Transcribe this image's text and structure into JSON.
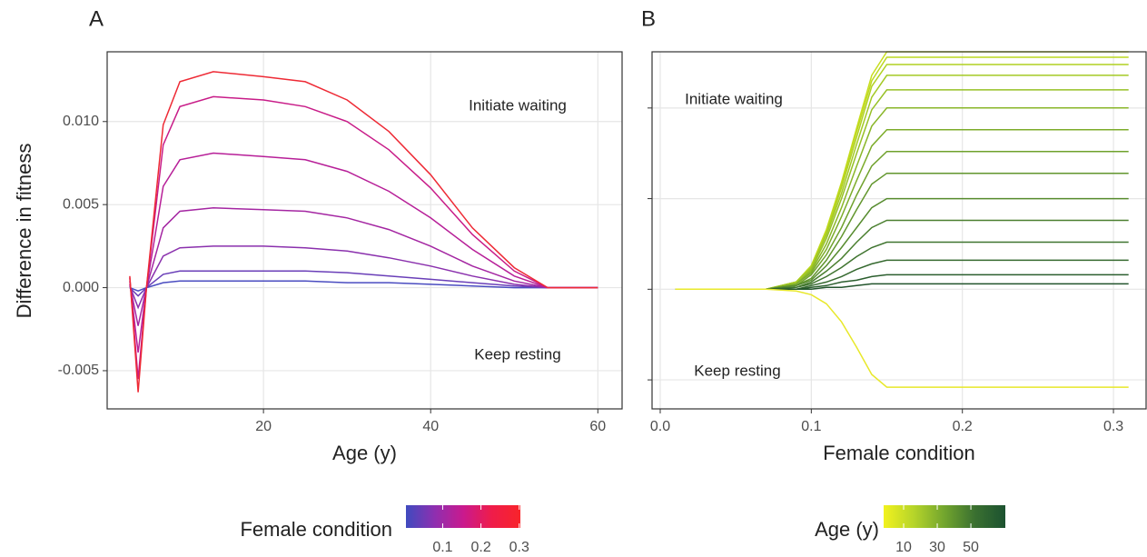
{
  "chart_data": [
    {
      "type": "line",
      "panel_label": "A",
      "x_label": "Age (y)",
      "y_label": "Difference in fitness",
      "annotations": [
        "Initiate waiting",
        "Keep resting"
      ],
      "xlim": [
        1.3,
        62.9
      ],
      "ylim": [
        -0.0073,
        0.0142
      ],
      "xticks": [
        20,
        40,
        60
      ],
      "yticks": [
        -0.005,
        {
          "value": 0,
          "label": "0.000"
        },
        {
          "value": 0.005,
          "label": "0.005"
        },
        {
          "value": 0.01,
          "label": "0.010"
        }
      ],
      "ytick_labels": true,
      "grid": true,
      "x": [
        4,
        5,
        6,
        8,
        10,
        14,
        20,
        25,
        30,
        35,
        40,
        45,
        50,
        54,
        60
      ],
      "series": [
        {
          "color": "#4a4cc0",
          "values": [
            0,
            -0.0002,
            0,
            0.0003,
            0.0004,
            0.0004,
            0.0004,
            0.0004,
            0.0003,
            0.0003,
            0.0002,
            0.0001,
            0,
            0,
            0
          ]
        },
        {
          "color": "#6a3fb8",
          "values": [
            0,
            -0.0005,
            0,
            0.0008,
            0.001,
            0.001,
            0.001,
            0.001,
            0.0009,
            0.0007,
            0.0005,
            0.0003,
            0.0001,
            0,
            0
          ]
        },
        {
          "color": "#8a30ad",
          "values": [
            0.0001,
            -0.0012,
            0,
            0.0019,
            0.0024,
            0.0025,
            0.0025,
            0.0024,
            0.0022,
            0.0018,
            0.0013,
            0.0007,
            0.0002,
            0,
            0
          ]
        },
        {
          "color": "#a426a2",
          "values": [
            0.0002,
            -0.0023,
            0,
            0.0036,
            0.0046,
            0.0048,
            0.0047,
            0.0046,
            0.0042,
            0.0035,
            0.0025,
            0.0013,
            0.0004,
            0,
            0
          ]
        },
        {
          "color": "#b71f98",
          "values": [
            0.0004,
            -0.0039,
            0,
            0.0061,
            0.0077,
            0.0081,
            0.0079,
            0.0077,
            0.007,
            0.0058,
            0.0042,
            0.0023,
            0.0007,
            0,
            0
          ]
        },
        {
          "color": "#c81c88",
          "values": [
            0.0006,
            -0.0055,
            0,
            0.0086,
            0.0109,
            0.0115,
            0.0113,
            0.0109,
            0.01,
            0.0083,
            0.006,
            0.0032,
            0.001,
            0,
            0
          ]
        },
        {
          "color": "#ee2a35",
          "values": [
            0.0007,
            -0.0063,
            0,
            0.0098,
            0.0124,
            0.013,
            0.0127,
            0.0124,
            0.0113,
            0.0094,
            0.0068,
            0.0036,
            0.0012,
            0,
            0
          ]
        }
      ],
      "legend": {
        "title": "Female condition",
        "colors": [
          "#3f4bbf",
          "#8e2fb0",
          "#c91a8e",
          "#ef1c4a",
          "#f8242a"
        ],
        "lim": [
          0.004,
          0.303
        ],
        "ticks": [
          0.1,
          0.2,
          0.3
        ]
      }
    },
    {
      "type": "line",
      "panel_label": "B",
      "x_label": "Female condition",
      "annotations": [
        "Initiate waiting",
        "Keep resting"
      ],
      "xlim": [
        -0.0054,
        0.3216
      ],
      "ylim": [
        -0.0066,
        0.0131
      ],
      "xticks": [
        {
          "value": 0,
          "label": "0.0"
        },
        0.1,
        0.2,
        0.3
      ],
      "yticks": [
        -0.005,
        0,
        0.005,
        0.01
      ],
      "ytick_labels": false,
      "grid": true,
      "x": [
        0.01,
        0.07,
        0.09,
        0.1,
        0.11,
        0.12,
        0.13,
        0.14,
        0.15,
        0.31
      ],
      "series": [
        {
          "color": "#c8de1e",
          "values": [
            0,
            0,
            0.0004,
            0.0013,
            0.0033,
            0.0059,
            0.0089,
            0.0118,
            0.0131,
            0.0131
          ]
        },
        {
          "color": "#bcd81f",
          "values": [
            0,
            0,
            0.0004,
            0.0013,
            0.0032,
            0.0058,
            0.0087,
            0.0115,
            0.0128,
            0.0128
          ]
        },
        {
          "color": "#b0d121",
          "values": [
            0,
            0,
            0.0004,
            0.0012,
            0.0031,
            0.0056,
            0.0084,
            0.0112,
            0.0124,
            0.0124
          ]
        },
        {
          "color": "#a3c924",
          "values": [
            0,
            0,
            0.0004,
            0.0012,
            0.003,
            0.0053,
            0.008,
            0.0106,
            0.0118,
            0.0118
          ]
        },
        {
          "color": "#96c026",
          "values": [
            0,
            0,
            0.0003,
            0.0011,
            0.0028,
            0.005,
            0.0075,
            0.0099,
            0.011,
            0.011
          ]
        },
        {
          "color": "#89b628",
          "values": [
            0,
            0,
            0.0003,
            0.001,
            0.0025,
            0.0045,
            0.0068,
            0.009,
            0.01,
            0.01
          ]
        },
        {
          "color": "#7cac2a",
          "values": [
            0,
            0,
            0.0003,
            0.0009,
            0.0022,
            0.004,
            0.006,
            0.0079,
            0.0088,
            0.0088
          ]
        },
        {
          "color": "#6fa12c",
          "values": [
            0,
            0,
            0.0002,
            0.0008,
            0.0019,
            0.0034,
            0.0052,
            0.0068,
            0.0076,
            0.0076
          ]
        },
        {
          "color": "#62962d",
          "values": [
            0,
            0,
            0.0002,
            0.0006,
            0.0016,
            0.0029,
            0.0044,
            0.0058,
            0.0064,
            0.0064
          ]
        },
        {
          "color": "#568b2e",
          "values": [
            0,
            0,
            0.0002,
            0.0005,
            0.0013,
            0.0023,
            0.0034,
            0.0045,
            0.005,
            0.005
          ]
        },
        {
          "color": "#4a7f2f",
          "values": [
            0,
            0,
            0.0001,
            0.0004,
            0.001,
            0.0017,
            0.0026,
            0.0034,
            0.0038,
            0.0038
          ]
        },
        {
          "color": "#3f742f",
          "values": [
            0,
            0,
            0.0001,
            0.0003,
            0.0007,
            0.0012,
            0.0018,
            0.0023,
            0.0026,
            0.0026
          ]
        },
        {
          "color": "#35692f",
          "values": [
            0,
            0,
            0,
            0.0002,
            0.0004,
            0.0007,
            0.0011,
            0.0014,
            0.0016,
            0.0016
          ]
        },
        {
          "color": "#2b5e2e",
          "values": [
            0,
            0,
            0,
            0.0001,
            0.0002,
            0.0004,
            0.0005,
            0.0007,
            0.0008,
            0.0008
          ]
        },
        {
          "color": "#22542c",
          "values": [
            0,
            0,
            0,
            0,
            0.0001,
            0.0001,
            0.0002,
            0.0003,
            0.0003,
            0.0003
          ]
        },
        {
          "color": "#e8e82a",
          "values": [
            0,
            0,
            -0.0001,
            -0.0003,
            -0.0008,
            -0.0018,
            -0.0032,
            -0.0047,
            -0.0054,
            -0.0054
          ]
        }
      ],
      "legend": {
        "title": "Age (y)",
        "colors": [
          "#f2f21e",
          "#b5d42a",
          "#72a52e",
          "#3a7030",
          "#1c5230"
        ],
        "lim": [
          -1.9,
          70.5
        ],
        "ticks": [
          10,
          30,
          50
        ]
      }
    }
  ]
}
